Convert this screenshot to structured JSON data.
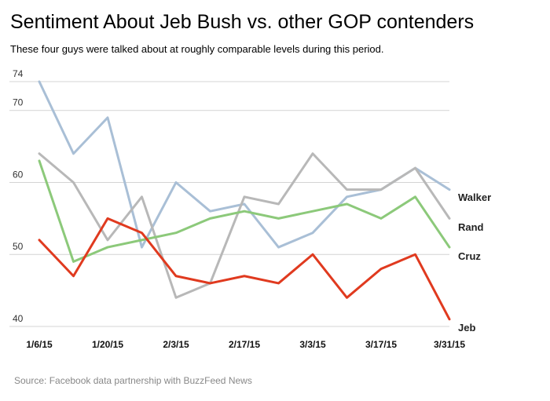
{
  "title": "Sentiment About Jeb Bush vs. other GOP contenders",
  "subtitle": "These four guys were talked about at roughly comparable levels during this period.",
  "source": "Source: Facebook data partnership with BuzzFeed News",
  "chart_data": {
    "type": "line",
    "x": [
      "1/6/15",
      "1/13/15",
      "1/20/15",
      "1/27/15",
      "2/3/15",
      "2/10/15",
      "2/17/15",
      "2/24/15",
      "3/3/15",
      "3/10/15",
      "3/17/15",
      "3/24/15",
      "3/31/15"
    ],
    "x_tick_labels": [
      "1/6/15",
      "1/20/15",
      "2/3/15",
      "2/17/15",
      "3/3/15",
      "3/17/15",
      "3/31/15"
    ],
    "y_ticks": [
      40,
      50,
      60,
      70,
      74
    ],
    "ylim": [
      40,
      75
    ],
    "grid": true,
    "series": [
      {
        "name": "Walker",
        "color": "#a9bfd6",
        "values": [
          74,
          64,
          69,
          51,
          60,
          56,
          57,
          51,
          53,
          58,
          59,
          62,
          59
        ]
      },
      {
        "name": "Rand",
        "color": "#b8b8b8",
        "values": [
          64,
          60,
          52,
          58,
          44,
          46,
          58,
          57,
          64,
          59,
          59,
          62,
          55
        ]
      },
      {
        "name": "Cruz",
        "color": "#8cc97a",
        "values": [
          63,
          49,
          51,
          52,
          53,
          55,
          56,
          55,
          56,
          57,
          55,
          58,
          51
        ]
      },
      {
        "name": "Jeb",
        "color": "#e03a1f",
        "values": [
          52,
          47,
          55,
          53,
          47,
          46,
          47,
          46,
          50,
          44,
          48,
          50,
          41
        ]
      }
    ]
  }
}
